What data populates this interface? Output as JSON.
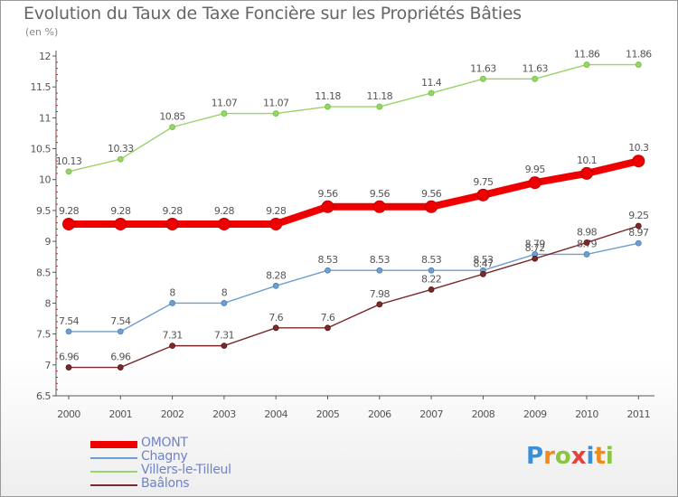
{
  "title": "Evolution du Taux de Taxe Foncière sur les Propriétés Bâties",
  "subtitle": "(en %)",
  "brand": {
    "text": "Proxiti",
    "letters": [
      {
        "ch": "P",
        "color": "#3a8fd8"
      },
      {
        "ch": "r",
        "color": "#f08a1c"
      },
      {
        "ch": "o",
        "color": "#8bc43f"
      },
      {
        "ch": "x",
        "color": "#e8403a"
      },
      {
        "ch": "i",
        "color": "#3a8fd8"
      },
      {
        "ch": "t",
        "color": "#f08a1c"
      },
      {
        "ch": "i",
        "color": "#8bc43f"
      }
    ]
  },
  "chart_data": {
    "type": "line",
    "title": "Evolution du Taux de Taxe Foncière sur les Propriétés Bâties",
    "ylabel": "(en %)",
    "xlabel": "",
    "x": [
      "2000",
      "2001",
      "2002",
      "2003",
      "2004",
      "2005",
      "2006",
      "2007",
      "2008",
      "2009",
      "2010",
      "2011"
    ],
    "ylim": [
      6.5,
      12
    ],
    "yticks": [
      6.5,
      7,
      7.5,
      8,
      8.5,
      9,
      9.5,
      10,
      10.5,
      11,
      11.5,
      12
    ],
    "grid": false,
    "legend_position": "bottom-left",
    "series": [
      {
        "name": "OMONT",
        "color": "#ee0000",
        "values": [
          9.28,
          9.28,
          9.28,
          9.28,
          9.28,
          9.56,
          9.56,
          9.56,
          9.75,
          9.95,
          10.1,
          10.3
        ],
        "labels": [
          "9.28",
          "9.28",
          "9.28",
          "9.28",
          "9.28",
          "9.56",
          "9.56",
          "9.56",
          "9.75",
          "9.95",
          "10.1",
          "10.3"
        ]
      },
      {
        "name": "Chagny",
        "color": "#6e9fcf",
        "values": [
          7.54,
          7.54,
          8,
          8,
          8.28,
          8.53,
          8.53,
          8.53,
          8.53,
          8.79,
          8.79,
          8.97
        ],
        "labels": [
          "7.54",
          "7.54",
          "8",
          "8",
          "8.28",
          "8.53",
          "8.53",
          "8.53",
          "8.53",
          "8.79",
          "8.79",
          "8.97"
        ]
      },
      {
        "name": "Villers-le-Tilleul",
        "color": "#99d36a",
        "values": [
          10.13,
          10.33,
          10.85,
          11.07,
          11.07,
          11.18,
          11.18,
          11.4,
          11.63,
          11.63,
          11.86,
          11.86
        ],
        "labels": [
          "10.13",
          "10.33",
          "10.85",
          "11.07",
          "11.07",
          "11.18",
          "11.18",
          "11.4",
          "11.63",
          "11.63",
          "11.86",
          "11.86"
        ]
      },
      {
        "name": "Baâlons",
        "color": "#7a2a2a",
        "values": [
          6.96,
          6.96,
          7.31,
          7.31,
          7.6,
          7.6,
          7.98,
          8.22,
          8.47,
          8.72,
          8.98,
          9.25
        ],
        "labels": [
          "6.96",
          "6.96",
          "7.31",
          "7.31",
          "7.6",
          "7.6",
          "7.98",
          "8.22",
          "8.47",
          "8.72",
          "8.98",
          "9.25"
        ]
      }
    ]
  }
}
